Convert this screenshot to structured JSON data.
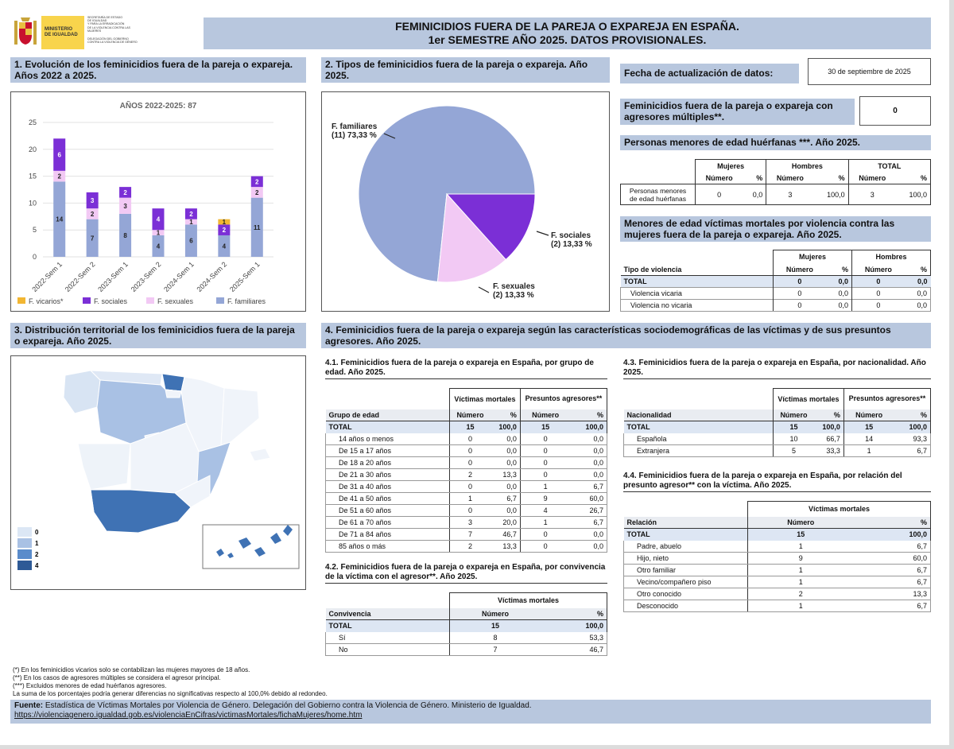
{
  "logo": {
    "line1": "MINISTERIO",
    "line2": "DE IGUALDAD",
    "sec1": "SECRETARÍA DE ESTADO",
    "sec2": "DE IGUALDAD",
    "sec3": "Y PARA LA ERRADICACIÓN",
    "sec4": "DE LA VIOLENCIA CONTRA LAS MUJERES",
    "del1": "DELEGACIÓN DEL GOBIERNO",
    "del2": "CONTRA LA VIOLENCIA DE GÉNERO"
  },
  "title": {
    "line1": "FEMINICIDIOS FUERA DE LA PAREJA O EXPAREJA EN ESPAÑA.",
    "line2": "1er SEMESTRE AÑO 2025. DATOS PROVISIONALES."
  },
  "s1": {
    "heading": "1. Evolución de los feminicidios fuera de la pareja o expareja. Años 2022 a 2025."
  },
  "s2": {
    "heading": "2. Tipos de feminicidios fuera de la pareja o expareja. Año 2025."
  },
  "s3": {
    "heading": "3. Distribución territorial de los feminicidios fuera de la pareja o expareja. Año 2025.",
    "legend": [
      "0",
      "1",
      "2",
      "4"
    ]
  },
  "s4": {
    "heading": "4. Feminicidios fuera de la pareja o expareja según las características sociodemográficas de las víctimas y de sus presuntos agresores. Año 2025."
  },
  "fecha": {
    "label": "Fecha de actualización de datos:",
    "value": "30 de septiembre de 2025"
  },
  "multiples": {
    "label": "Feminicidios fuera de la pareja o expareja con agresores múltiples**.",
    "value": "0"
  },
  "huerfanas": {
    "heading": "Personas menores de edad huérfanas ***. Año 2025.",
    "h_mujeres": "Mujeres",
    "h_hombres": "Hombres",
    "h_total": "TOTAL",
    "h_num": "Número",
    "h_pct": "%",
    "row_label1": "Personas menores",
    "row_label2": "de edad huérfanas",
    "values": [
      "0",
      "0,0",
      "3",
      "100,0",
      "3",
      "100,0"
    ]
  },
  "menores": {
    "heading": "Menores de edad víctimas mortales por violencia contra las mujeres fuera de la pareja o expareja. Año 2025.",
    "h_tipo": "Tipo de violencia",
    "h_mujeres": "Mujeres",
    "h_hombres": "Hombres",
    "h_num": "Número",
    "h_pct": "%",
    "rows": [
      {
        "label": "TOTAL",
        "v": [
          "0",
          "0,0",
          "0",
          "0,0"
        ]
      },
      {
        "label": "Violencia vicaria",
        "v": [
          "0",
          "0,0",
          "0",
          "0,0"
        ]
      },
      {
        "label": "Violencia no vicaria",
        "v": [
          "0",
          "0,0",
          "0",
          "0,0"
        ]
      }
    ]
  },
  "t41": {
    "heading": "4.1. Feminicidios fuera de la pareja o expareja en España, por grupo de edad. Año 2025.",
    "h_victimas": "Víctimas mortales",
    "h_agresores": "Presuntos agresores**",
    "h_grupo": "Grupo de edad",
    "h_num": "Número",
    "h_pct": "%",
    "rows": [
      {
        "label": "TOTAL",
        "v": [
          "15",
          "100,0",
          "15",
          "100,0"
        ]
      },
      {
        "label": "14 años o menos",
        "v": [
          "0",
          "0,0",
          "0",
          "0,0"
        ]
      },
      {
        "label": "De 15 a 17 años",
        "v": [
          "0",
          "0,0",
          "0",
          "0,0"
        ]
      },
      {
        "label": "De 18 a 20 años",
        "v": [
          "0",
          "0,0",
          "0",
          "0,0"
        ]
      },
      {
        "label": "De 21 a 30 años",
        "v": [
          "2",
          "13,3",
          "0",
          "0,0"
        ]
      },
      {
        "label": "De 31 a 40 años",
        "v": [
          "0",
          "0,0",
          "1",
          "6,7"
        ]
      },
      {
        "label": "De 41 a 50 años",
        "v": [
          "1",
          "6,7",
          "9",
          "60,0"
        ]
      },
      {
        "label": "De 51 a 60 años",
        "v": [
          "0",
          "0,0",
          "4",
          "26,7"
        ]
      },
      {
        "label": "De 61 a 70 años",
        "v": [
          "3",
          "20,0",
          "1",
          "6,7"
        ]
      },
      {
        "label": "De 71 a 84 años",
        "v": [
          "7",
          "46,7",
          "0",
          "0,0"
        ]
      },
      {
        "label": "85 años o más",
        "v": [
          "2",
          "13,3",
          "0",
          "0,0"
        ]
      }
    ]
  },
  "t42": {
    "heading": "4.2. Feminicidios fuera de la pareja o expareja en España, por convivencia de la víctima con el agresor**. Año 2025.",
    "h_victimas": "Víctimas mortales",
    "h_conv": "Convivencia",
    "h_num": "Número",
    "h_pct": "%",
    "rows": [
      {
        "label": "TOTAL",
        "v": [
          "15",
          "100,0"
        ]
      },
      {
        "label": "Sí",
        "v": [
          "8",
          "53,3"
        ]
      },
      {
        "label": "No",
        "v": [
          "7",
          "46,7"
        ]
      }
    ]
  },
  "t43": {
    "heading": "4.3. Feminicidios fuera de la pareja o expareja en España, por nacionalidad. Año 2025.",
    "h_victimas": "Víctimas mortales",
    "h_agresores": "Presuntos agresores**",
    "h_nac": "Nacionalidad",
    "h_num": "Número",
    "h_pct": "%",
    "rows": [
      {
        "label": "TOTAL",
        "v": [
          "15",
          "100,0",
          "15",
          "100,0"
        ]
      },
      {
        "label": "Española",
        "v": [
          "10",
          "66,7",
          "14",
          "93,3"
        ]
      },
      {
        "label": "Extranjera",
        "v": [
          "5",
          "33,3",
          "1",
          "6,7"
        ]
      }
    ]
  },
  "t44": {
    "heading": "4.4. Feminicidios fuera de la pareja o expareja en España, por relación del presunto agresor** con la víctima. Año 2025.",
    "h_victimas": "Víctimas mortales",
    "h_rel": "Relación",
    "h_num": "Número",
    "h_pct": "%",
    "rows": [
      {
        "label": "TOTAL",
        "v": [
          "15",
          "100,0"
        ]
      },
      {
        "label": "Padre, abuelo",
        "v": [
          "1",
          "6,7"
        ]
      },
      {
        "label": "Hijo, nieto",
        "v": [
          "9",
          "60,0"
        ]
      },
      {
        "label": "Otro familiar",
        "v": [
          "1",
          "6,7"
        ]
      },
      {
        "label": "Vecino/compañero piso",
        "v": [
          "1",
          "6,7"
        ]
      },
      {
        "label": "Otro conocido",
        "v": [
          "2",
          "13,3"
        ]
      },
      {
        "label": "Desconocido",
        "v": [
          "1",
          "6,7"
        ]
      }
    ]
  },
  "notes": [
    "(*) En los feminicidios vicarios solo se contabilizan las mujeres mayores de 18 años.",
    "(**) En los casos de agresores múltiples se considera el agresor principal.",
    "(***) Excluidos menores de edad huérfanos agresores.",
    "La suma de los porcentajes podría generar diferencias no significativas respecto al 100,0% debido al redondeo."
  ],
  "fuente": {
    "label": "Fuente:",
    "text": "Estadística de Víctimas Mortales por Violencia de Género. Delegación del Gobierno contra la Violencia de Género. Ministerio de Igualdad.",
    "url": "https://violenciagenero.igualdad.gob.es/violenciaEnCifras/victimasMortales/fichaMujeres/home.htm"
  },
  "colors": {
    "vicarios": "#f2b632",
    "sociales": "#7b2fd6",
    "sexuales": "#f2c9f4",
    "familiares": "#94a6d6",
    "header": "#b8c7de"
  },
  "chart_data": [
    {
      "type": "bar",
      "stacked": true,
      "title": "AÑOS 2022-2025: 87",
      "categories": [
        "2022-Sem 1",
        "2022-Sem 2",
        "2023-Sem 1",
        "2023-Sem 2",
        "2024-Sem 1",
        "2024-Sem 2",
        "2025-Sem 1"
      ],
      "ylim": [
        0,
        25
      ],
      "yticks": [
        0,
        5,
        10,
        15,
        20,
        25
      ],
      "series": [
        {
          "name": "F. familiares",
          "values": [
            14,
            7,
            8,
            4,
            6,
            4,
            11
          ]
        },
        {
          "name": "F. sexuales",
          "values": [
            2,
            2,
            3,
            1,
            1,
            0,
            2
          ]
        },
        {
          "name": "F. sociales",
          "values": [
            6,
            3,
            2,
            4,
            2,
            2,
            2
          ]
        },
        {
          "name": "F. vicarios*",
          "values": [
            0,
            0,
            0,
            0,
            0,
            1,
            0
          ]
        }
      ],
      "legend": [
        "F. vicarios*",
        "F. sociales",
        "F. sexuales",
        "F. familiares"
      ]
    },
    {
      "type": "pie",
      "slices": [
        {
          "label": "F. familiares",
          "count": "(11) 73,33 %",
          "value": 11
        },
        {
          "label": "F. sociales",
          "count": "(2) 13,33 %",
          "value": 2
        },
        {
          "label": "F. sexuales",
          "count": "(2) 13,33 %",
          "value": 2
        }
      ]
    }
  ]
}
